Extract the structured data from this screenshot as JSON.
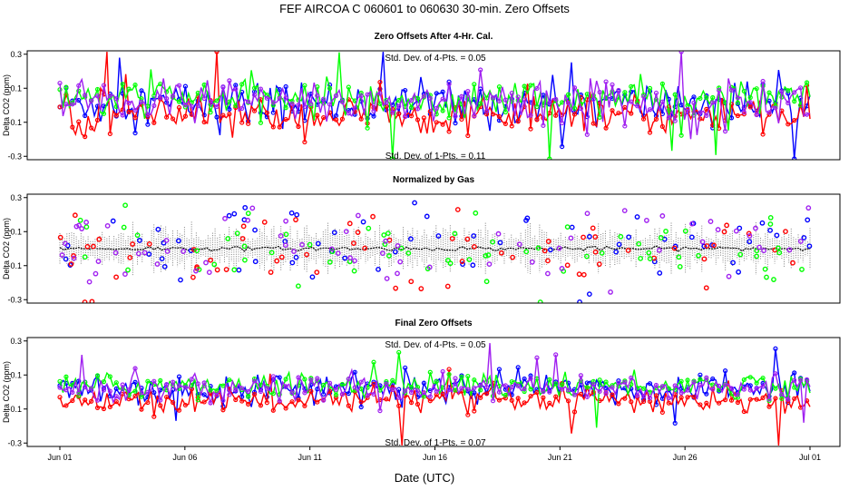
{
  "title": "FEF   AIRCOA C   060601 to 060630   30-min. Zero Offsets",
  "x_axis_label": "Date (UTC)",
  "colors": {
    "blue": "#0000ff",
    "red": "#ff0000",
    "green": "#00ff00",
    "purple": "#a020f0",
    "gray": "#808080",
    "black": "#000000"
  },
  "chart_data": [
    {
      "type": "line",
      "title": "Zero Offsets After 4-Hr. Cal.",
      "ylabel": "Delta CO2 (ppm)",
      "ylim": [
        -0.32,
        0.32
      ],
      "yticks": [
        -0.3,
        -0.1,
        0.1,
        0.3
      ],
      "ytick_labels": [
        "-0.3",
        "-0.1",
        "0.1",
        "0.3"
      ],
      "xlim": [
        0,
        30
      ],
      "xticks": [
        0,
        5,
        10,
        15,
        20,
        25,
        30
      ],
      "xtick_labels": [
        "Jun 01",
        "Jun 06",
        "Jun 11",
        "Jun 16",
        "Jun 21",
        "Jun 26",
        "Jul 01"
      ],
      "annotation_top": "Std. Dev. of 4-Pts. =  0.05",
      "annotation_bottom": "Std. Dev. of 1-Pts. =  0.11",
      "series": [
        {
          "name": "blue",
          "color": "#0000ff",
          "mean": 0.01,
          "sd": 0.11
        },
        {
          "name": "red",
          "color": "#ff0000",
          "mean": -0.06,
          "sd": 0.09
        },
        {
          "name": "green",
          "color": "#00ff00",
          "mean": 0.04,
          "sd": 0.09
        },
        {
          "name": "purple",
          "color": "#a020f0",
          "mean": 0.02,
          "sd": 0.11
        }
      ]
    },
    {
      "type": "scatter",
      "title": "Normalized by Gas",
      "ylabel": "Delta CO2 (ppm)",
      "ylim": [
        -0.32,
        0.32
      ],
      "yticks": [
        -0.3,
        -0.1,
        0.1,
        0.3
      ],
      "ytick_labels": [
        "-0.3",
        "-0.1",
        "0.1",
        "0.3"
      ],
      "xlim": [
        0,
        30
      ],
      "xticks": [
        0,
        5,
        10,
        15,
        20,
        25,
        30
      ],
      "xtick_labels": [
        "Jun 01",
        "Jun 06",
        "Jun 11",
        "Jun 16",
        "Jun 21",
        "Jun 26",
        "Jul 01"
      ],
      "mean_series": {
        "name": "hourly mean",
        "color": "#000000",
        "value": 0.0
      },
      "series": [
        {
          "name": "blue",
          "color": "#0000ff",
          "mean": 0.0,
          "sd": 0.12
        },
        {
          "name": "red",
          "color": "#ff0000",
          "mean": 0.0,
          "sd": 0.11
        },
        {
          "name": "green",
          "color": "#00ff00",
          "mean": 0.0,
          "sd": 0.11
        },
        {
          "name": "purple",
          "color": "#a020f0",
          "mean": 0.0,
          "sd": 0.12
        }
      ]
    },
    {
      "type": "line",
      "title": "Final Zero Offsets",
      "ylabel": "Delta CO2 (ppm)",
      "ylim": [
        -0.32,
        0.32
      ],
      "yticks": [
        -0.3,
        -0.1,
        0.1,
        0.3
      ],
      "ytick_labels": [
        "-0.3",
        "-0.1",
        "0.1",
        "0.3"
      ],
      "xlim": [
        0,
        30
      ],
      "xticks": [
        0,
        5,
        10,
        15,
        20,
        25,
        30
      ],
      "xtick_labels": [
        "Jun 01",
        "Jun 06",
        "Jun 11",
        "Jun 16",
        "Jun 21",
        "Jun 26",
        "Jul 01"
      ],
      "annotation_top": "Std. Dev. of 4-Pts. =  0.05",
      "annotation_bottom": "Std. Dev. of 1-Pts. =  0.07",
      "series": [
        {
          "name": "blue",
          "color": "#0000ff",
          "mean": 0.02,
          "sd": 0.07
        },
        {
          "name": "red",
          "color": "#ff0000",
          "mean": -0.05,
          "sd": 0.06
        },
        {
          "name": "green",
          "color": "#00ff00",
          "mean": 0.04,
          "sd": 0.06
        },
        {
          "name": "purple",
          "color": "#a020f0",
          "mean": 0.02,
          "sd": 0.07
        }
      ]
    }
  ]
}
